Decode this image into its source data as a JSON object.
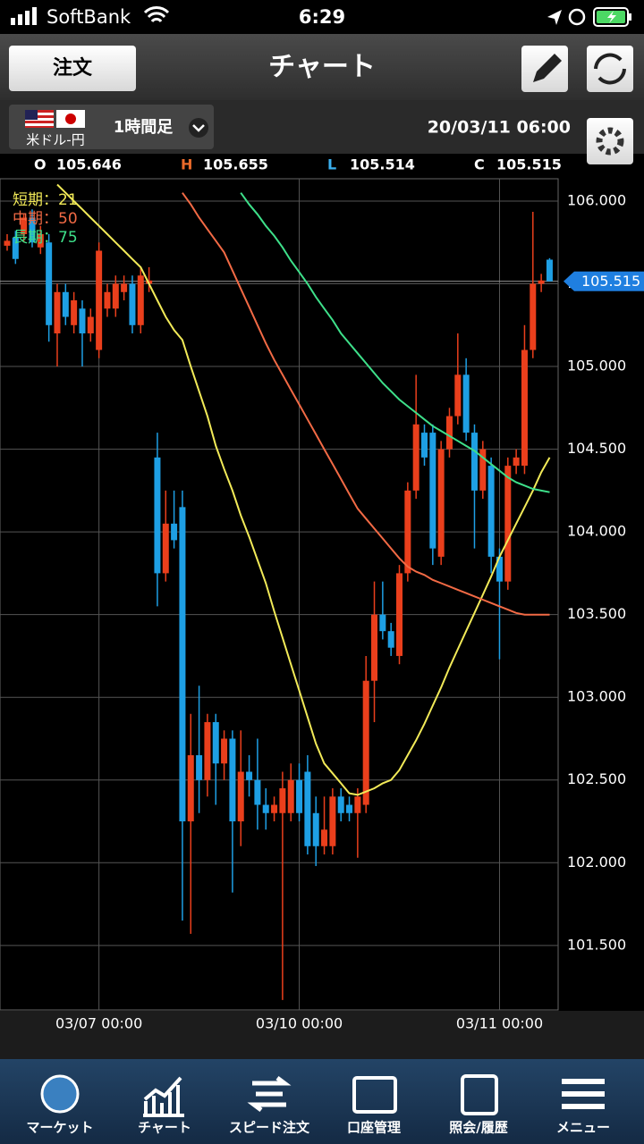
{
  "status_bar": {
    "carrier": "SoftBank",
    "time": "6:29"
  },
  "header": {
    "order_button": "注文",
    "title": "チャート"
  },
  "instrument": {
    "pair": "米ドル-円",
    "timeframe": "1時間足",
    "datetime": "20/03/11 06:00"
  },
  "ohlc_labels": [
    "O",
    "H",
    "L",
    "C"
  ],
  "tabs": [
    "マーケット",
    "チャート",
    "スピード注文",
    "口座管理",
    "照会/履歴",
    "メニュー"
  ],
  "chart_data": {
    "type": "candlestick",
    "up_color": "#ea3f1c",
    "down_color": "#1e9fe4",
    "grid": true,
    "ylim": [
      101.11,
      106.135
    ],
    "yticks": [
      {
        "value": 101.5,
        "label": "101.500"
      },
      {
        "value": 102,
        "label": "102.000"
      },
      {
        "value": 102.5,
        "label": "102.500"
      },
      {
        "value": 103,
        "label": "103.000"
      },
      {
        "value": 103.5,
        "label": "103.500"
      },
      {
        "value": 104,
        "label": "104.000"
      },
      {
        "value": 104.5,
        "label": "104.500"
      },
      {
        "value": 105,
        "label": "105.000"
      },
      {
        "value": 105.5,
        "label": "105.500"
      },
      {
        "value": 106,
        "label": "106.000"
      }
    ],
    "categories": [
      null,
      null,
      null,
      null,
      null,
      null,
      null,
      null,
      null,
      null,
      null,
      "03/07 00:00",
      null,
      null,
      null,
      null,
      null,
      null,
      null,
      null,
      null,
      null,
      null,
      null,
      null,
      null,
      null,
      null,
      null,
      null,
      null,
      null,
      null,
      null,
      null,
      "03/10 00:00",
      null,
      null,
      null,
      null,
      null,
      null,
      null,
      null,
      null,
      null,
      null,
      null,
      null,
      null,
      null,
      null,
      null,
      null,
      null,
      null,
      null,
      null,
      null,
      "03/11 00:00",
      null,
      null,
      null,
      null,
      null,
      null
    ],
    "open": [
      105.73,
      105.78,
      105.8,
      105.9,
      105.72,
      105.75,
      105.2,
      105.45,
      105.25,
      105.35,
      105.2,
      105.1,
      105.35,
      105.35,
      105.45,
      105.5,
      105.25,
      105.5,
      104.45,
      103.75,
      104.05,
      104.15,
      102.25,
      102.65,
      102.5,
      102.85,
      102.6,
      102.75,
      102.25,
      102.55,
      102.5,
      102.35,
      102.3,
      102.3,
      102.3,
      102.5,
      102.55,
      102.3,
      102.1,
      102.1,
      102.4,
      102.35,
      102.3,
      102.35,
      103.1,
      103.5,
      103.4,
      103.25,
      103.75,
      104.25,
      104.6,
      104.6,
      103.85,
      104.5,
      104.7,
      104.95,
      104.6,
      104.25,
      104.4,
      103.85,
      103.7,
      104.4,
      104.4,
      105.1,
      105.5,
      105.646
    ],
    "high": [
      105.8,
      105.82,
      105.92,
      105.95,
      105.85,
      105.8,
      105.5,
      105.5,
      105.45,
      105.4,
      105.35,
      105.75,
      105.5,
      105.55,
      105.55,
      105.55,
      105.6,
      105.6,
      104.6,
      104.25,
      104.25,
      104.25,
      102.9,
      103.07,
      102.9,
      102.9,
      102.8,
      102.8,
      102.8,
      102.65,
      102.75,
      102.45,
      102.4,
      102.55,
      102.6,
      102.6,
      102.65,
      102.4,
      102.4,
      102.45,
      102.45,
      102.4,
      102.45,
      103.25,
      103.7,
      103.7,
      103.45,
      103.8,
      104.3,
      104.95,
      104.65,
      104.65,
      104.55,
      104.75,
      105.2,
      105.05,
      104.65,
      104.55,
      104.45,
      103.9,
      104.45,
      104.5,
      105.25,
      105.935,
      105.56,
      105.655
    ],
    "low": [
      105.7,
      105.62,
      105.75,
      105.72,
      105.68,
      105.15,
      105.0,
      105.25,
      105.2,
      105.0,
      105.15,
      105.05,
      105.3,
      105.3,
      105.4,
      105.2,
      105.2,
      105.45,
      103.55,
      103.7,
      103.9,
      101.65,
      101.57,
      102.3,
      102.4,
      102.35,
      102.5,
      101.82,
      102.1,
      102.4,
      102.2,
      102.2,
      102.25,
      101.17,
      102.25,
      102.25,
      102.05,
      101.98,
      102.05,
      102.05,
      102.25,
      102.25,
      102.03,
      102.3,
      102.85,
      103.35,
      103.25,
      103.2,
      103.7,
      104.2,
      104.4,
      103.8,
      103.8,
      104.45,
      104.65,
      104.55,
      103.9,
      104.2,
      103.75,
      103.23,
      103.65,
      104.35,
      104.35,
      105.05,
      105.45,
      105.514
    ],
    "close": [
      105.76,
      105.65,
      105.9,
      105.75,
      105.8,
      105.25,
      105.45,
      105.3,
      105.4,
      105.2,
      105.3,
      105.7,
      105.45,
      105.5,
      105.5,
      105.25,
      105.55,
      105.52,
      103.75,
      104.05,
      103.95,
      102.25,
      102.65,
      102.5,
      102.85,
      102.6,
      102.75,
      102.25,
      102.55,
      102.5,
      102.35,
      102.3,
      102.35,
      102.45,
      102.5,
      102.3,
      102.1,
      102.1,
      102.2,
      102.4,
      102.3,
      102.3,
      102.4,
      103.1,
      103.5,
      103.4,
      103.3,
      103.75,
      104.25,
      104.65,
      104.45,
      103.9,
      104.5,
      104.7,
      104.95,
      104.6,
      104.25,
      104.5,
      103.85,
      103.7,
      104.4,
      104.45,
      105.1,
      105.5,
      105.52,
      105.515
    ],
    "series": [
      {
        "name": "短期：21",
        "color": "#f2ea58",
        "values": [
          null,
          null,
          null,
          null,
          null,
          null,
          106.1,
          106.05,
          106.0,
          105.95,
          105.9,
          105.85,
          105.8,
          105.75,
          105.7,
          105.65,
          105.6,
          105.5,
          105.4,
          105.3,
          105.22,
          105.16,
          105.0,
          104.85,
          104.7,
          104.52,
          104.38,
          104.25,
          104.1,
          103.97,
          103.83,
          103.69,
          103.52,
          103.36,
          103.2,
          103.04,
          102.88,
          102.72,
          102.6,
          102.54,
          102.48,
          102.42,
          102.41,
          102.43,
          102.45,
          102.48,
          102.5,
          102.56,
          102.65,
          102.74,
          102.84,
          102.95,
          103.06,
          103.18,
          103.29,
          103.4,
          103.51,
          103.62,
          103.73,
          103.85,
          103.95,
          104.05,
          104.15,
          104.25,
          104.36,
          104.45
        ]
      },
      {
        "name": "中期：50",
        "color": "#f26a45",
        "values": [
          null,
          null,
          null,
          null,
          null,
          null,
          null,
          null,
          null,
          null,
          null,
          null,
          null,
          null,
          null,
          null,
          null,
          null,
          null,
          null,
          null,
          106.05,
          105.98,
          105.9,
          105.83,
          105.76,
          105.69,
          105.58,
          105.47,
          105.36,
          105.25,
          105.14,
          105.04,
          104.95,
          104.86,
          104.77,
          104.68,
          104.59,
          104.5,
          104.41,
          104.32,
          104.23,
          104.14,
          104.08,
          104.02,
          103.96,
          103.9,
          103.84,
          103.79,
          103.76,
          103.74,
          103.71,
          103.69,
          103.67,
          103.65,
          103.63,
          103.61,
          103.59,
          103.57,
          103.55,
          103.53,
          103.51,
          103.5,
          103.5,
          103.5,
          103.5
        ]
      },
      {
        "name": "長期：75",
        "color": "#3ee08a",
        "values": [
          null,
          null,
          null,
          null,
          null,
          null,
          null,
          null,
          null,
          null,
          null,
          null,
          null,
          null,
          null,
          null,
          null,
          null,
          null,
          null,
          null,
          null,
          null,
          null,
          null,
          null,
          null,
          null,
          106.05,
          105.98,
          105.92,
          105.85,
          105.79,
          105.72,
          105.64,
          105.57,
          105.5,
          105.42,
          105.35,
          105.28,
          105.2,
          105.14,
          105.08,
          105.02,
          104.96,
          104.9,
          104.85,
          104.8,
          104.76,
          104.72,
          104.68,
          104.64,
          104.61,
          104.58,
          104.55,
          104.52,
          104.49,
          104.45,
          104.41,
          104.37,
          104.33,
          104.3,
          104.28,
          104.26,
          104.25,
          104.24
        ]
      }
    ]
  }
}
